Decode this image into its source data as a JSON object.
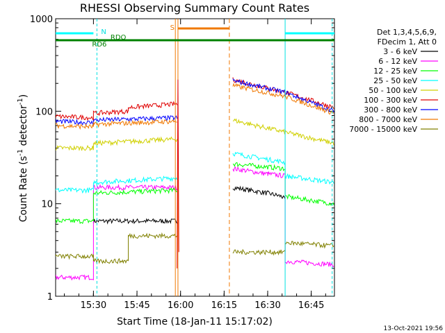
{
  "chart_data": {
    "type": "line",
    "title": "RHESSI Observing Summary Count Rates",
    "xlabel": "Start Time (18-Jan-11 15:17:02)",
    "ylabel_main": "Count Rate (s",
    "ylabel_sup1": "-1",
    "ylabel_mid": " detector",
    "ylabel_sup2": "-1",
    "ylabel_end": ")",
    "y_scale": "log",
    "ylim": [
      1,
      1000
    ],
    "xlim_minutes": [
      15.283,
      16.883
    ],
    "x_ticks": [
      {
        "t": 15.5,
        "label": "15:30"
      },
      {
        "t": 15.75,
        "label": "15:45"
      },
      {
        "t": 16.0,
        "label": "16:00"
      },
      {
        "t": 16.25,
        "label": "16:15"
      },
      {
        "t": 16.5,
        "label": "16:30"
      },
      {
        "t": 16.75,
        "label": "16:45"
      }
    ],
    "y_ticks": [
      {
        "v": 1,
        "label": "1"
      },
      {
        "v": 10,
        "label": "10"
      },
      {
        "v": 100,
        "label": "100"
      },
      {
        "v": 1000,
        "label": "1000"
      }
    ],
    "legend_header": [
      "Det 1,3,4,5,6,9,",
      "FDecim 1, Att 0"
    ],
    "legend_position": "right",
    "timestamp": "13-Oct-2021 19:56",
    "annotations": [
      {
        "label": "N",
        "color": "#00e0e0"
      },
      {
        "label": "S",
        "color": "#f07800"
      },
      {
        "label": "RD6",
        "color": "#008000"
      },
      {
        "label": "RDO",
        "color": "#008000"
      }
    ],
    "series": [
      {
        "name": "3 - 6 keV",
        "color": "#000000",
        "segments": [
          {
            "x": [
              15.28,
              15.5,
              15.5,
              15.9,
              15.98
            ],
            "y": [
              null,
              null,
              6.5,
              6.5,
              6.5
            ]
          },
          {
            "x": [
              16.3,
              16.5,
              16.58,
              16.6
            ],
            "y": [
              15,
              13,
              12,
              11
            ]
          }
        ]
      },
      {
        "name": "6 - 12 keV",
        "color": "#ff00ff",
        "segments": [
          {
            "x": [
              15.28,
              15.5,
              15.5,
              15.75,
              15.98
            ],
            "y": [
              1.6,
              1.6,
              15,
              15,
              15
            ]
          },
          {
            "x": [
              16.3,
              16.5,
              16.6,
              16.6,
              16.88
            ],
            "y": [
              24,
              21,
              20,
              2.4,
              2.2
            ]
          }
        ]
      },
      {
        "name": "12 - 25 keV",
        "color": "#00ff00",
        "segments": [
          {
            "x": [
              15.28,
              15.5,
              15.5,
              15.98
            ],
            "y": [
              6.5,
              6.5,
              13,
              14
            ]
          },
          {
            "x": [
              16.3,
              16.6,
              16.6,
              16.88
            ],
            "y": [
              27,
              24,
              12,
              10
            ]
          }
        ]
      },
      {
        "name": "25 - 50 keV",
        "color": "#00ffff",
        "segments": [
          {
            "x": [
              15.28,
              15.5,
              15.5,
              15.98
            ],
            "y": [
              14,
              14,
              17,
              19
            ]
          },
          {
            "x": [
              16.3,
              16.6,
              16.6,
              16.88
            ],
            "y": [
              35,
              28,
              20,
              17
            ]
          }
        ]
      },
      {
        "name": "50 - 100 keV",
        "color": "#d0d000",
        "segments": [
          {
            "x": [
              15.28,
              15.5,
              15.5,
              15.98
            ],
            "y": [
              40,
              40,
              45,
              50
            ]
          },
          {
            "x": [
              16.3,
              16.88
            ],
            "y": [
              80,
              45
            ]
          }
        ]
      },
      {
        "name": "100 - 300 keV",
        "color": "#e00000",
        "segments": [
          {
            "x": [
              15.28,
              15.5,
              15.5,
              15.7,
              15.7,
              15.98
            ],
            "y": [
              88,
              85,
              95,
              100,
              110,
              120
            ]
          },
          {
            "x": [
              16.3,
              16.6,
              16.88
            ],
            "y": [
              220,
              160,
              110
            ]
          }
        ]
      },
      {
        "name": "300 - 800 keV",
        "color": "#0000ff",
        "segments": [
          {
            "x": [
              15.28,
              15.5,
              15.5,
              15.98
            ],
            "y": [
              78,
              75,
              80,
              85
            ]
          },
          {
            "x": [
              16.3,
              16.6,
              16.88
            ],
            "y": [
              215,
              160,
              100
            ]
          }
        ]
      },
      {
        "name": "800 - 7000 keV",
        "color": "#f07800",
        "segments": [
          {
            "x": [
              15.28,
              15.5,
              15.5,
              15.98
            ],
            "y": [
              70,
              68,
              72,
              78
            ]
          },
          {
            "x": [
              16.3,
              16.6,
              16.88
            ],
            "y": [
              190,
              145,
              95
            ]
          }
        ]
      },
      {
        "name": "7000 - 15000 keV",
        "color": "#808000",
        "segments": [
          {
            "x": [
              15.28,
              15.5,
              15.5,
              15.7,
              15.7,
              15.98
            ],
            "y": [
              2.7,
              2.7,
              2.4,
              2.4,
              4.5,
              4.5
            ]
          },
          {
            "x": [
              16.3,
              16.6,
              16.6,
              16.88
            ],
            "y": [
              3,
              3,
              3.8,
              3.5
            ]
          }
        ]
      }
    ]
  }
}
